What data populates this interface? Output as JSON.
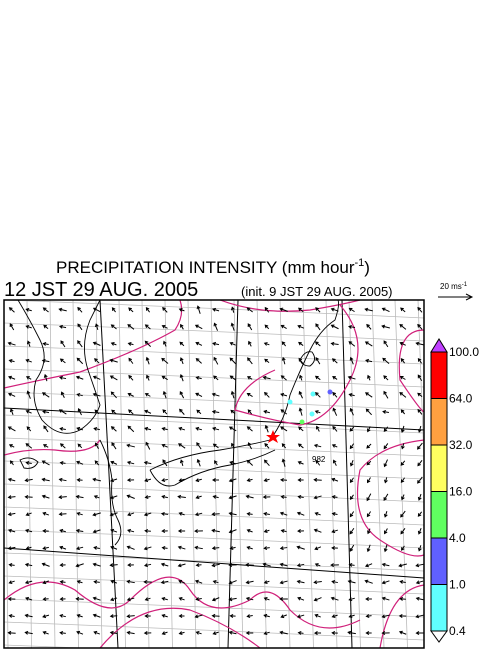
{
  "title": {
    "text": "PRECIPITATION INTENSITY (mm hour",
    "superscript": "-1",
    "close": ")"
  },
  "valid_time": "12 JST 29 AUG. 2005",
  "init_time": "(init. 9 JST 29 AUG. 2005)",
  "vector_legend": {
    "text": "20 ms",
    "superscript": "-1"
  },
  "map_label": "982",
  "colorbar": {
    "labels": [
      "100.0",
      "64.0",
      "32.0",
      "16.0",
      "4.0",
      "1.0",
      "0.4"
    ],
    "colors": [
      "#ff0000",
      "#ffa040",
      "#ffff60",
      "#60ff60",
      "#6060ff",
      "#60ffff"
    ],
    "over_color": "#c040ff",
    "under_color": "#ffffff"
  }
}
